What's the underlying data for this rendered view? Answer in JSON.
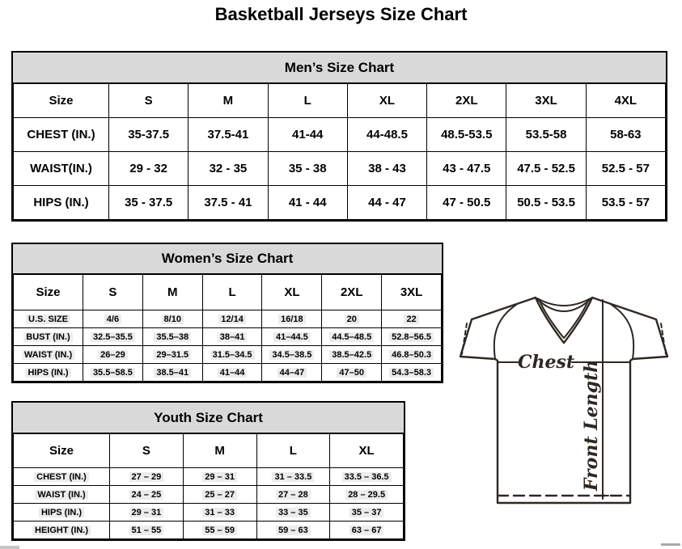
{
  "page_title": "Basketball Jerseys Size Chart",
  "tables": {
    "men": {
      "title": "Men’s Size Chart",
      "columns": [
        "Size",
        "S",
        "M",
        "L",
        "XL",
        "2XL",
        "3XL",
        "4XL"
      ],
      "rows": [
        {
          "label": "CHEST (IN.)",
          "values": [
            "35-37.5",
            "37.5-41",
            "41-44",
            "44-48.5",
            "48.5-53.5",
            "53.5-58",
            "58-63"
          ]
        },
        {
          "label": "WAIST(IN.)",
          "values": [
            "29 - 32",
            "32 - 35",
            "35 - 38",
            "38 - 43",
            "43 - 47.5",
            "47.5 - 52.5",
            "52.5 - 57"
          ]
        },
        {
          "label": "HIPS (IN.)",
          "values": [
            "35 - 37.5",
            "37.5 - 41",
            "41 - 44",
            "44 - 47",
            "47 - 50.5",
            "50.5 - 53.5",
            "53.5 - 57"
          ]
        }
      ]
    },
    "women": {
      "title": "Women’s Size Chart",
      "columns": [
        "Size",
        "S",
        "M",
        "L",
        "XL",
        "2XL",
        "3XL"
      ],
      "rows": [
        {
          "label": "U.S. SIZE",
          "values": [
            "4/6",
            "8/10",
            "12/14",
            "16/18",
            "20",
            "22"
          ]
        },
        {
          "label": "BUST (IN.)",
          "values": [
            "32.5–35.5",
            "35.5–38",
            "38–41",
            "41–44.5",
            "44.5–48.5",
            "52.8–56.5"
          ]
        },
        {
          "label": "WAIST (IN.)",
          "values": [
            "26–29",
            "29–31.5",
            "31.5–34.5",
            "34.5–38.5",
            "38.5–42.5",
            "46.8–50.3"
          ]
        },
        {
          "label": "HIPS (IN.)",
          "values": [
            "35.5–58.5",
            "38.5–41",
            "41–44",
            "44–47",
            "47–50",
            "54.3–58.3"
          ]
        }
      ]
    },
    "youth": {
      "title": "Youth Size Chart",
      "columns": [
        "Size",
        "S",
        "M",
        "L",
        "XL"
      ],
      "rows": [
        {
          "label": "CHEST (IN.)",
          "values": [
            "27 – 29",
            "29 – 31",
            "31 – 33.5",
            "33.5 – 36.5"
          ]
        },
        {
          "label": "WAIST (IN.)",
          "values": [
            "24 – 25",
            "25 – 27",
            "27 – 28",
            "28 – 29.5"
          ]
        },
        {
          "label": "HIPS (IN.)",
          "values": [
            "29 – 31",
            "31 – 33",
            "33 – 35",
            "35 – 37"
          ]
        },
        {
          "label": "HEIGHT (IN.)",
          "values": [
            "51 – 55",
            "55 – 59",
            "59 – 63",
            "63 – 67"
          ]
        }
      ]
    }
  },
  "diagram": {
    "chest_label": "Chest",
    "front_length_label": "Front Length"
  },
  "colors": {
    "table_band_bg": "#d9d9d9",
    "table_border": "#000000",
    "jersey_line": "#2e2823",
    "cell_highlight": "#ececec"
  }
}
